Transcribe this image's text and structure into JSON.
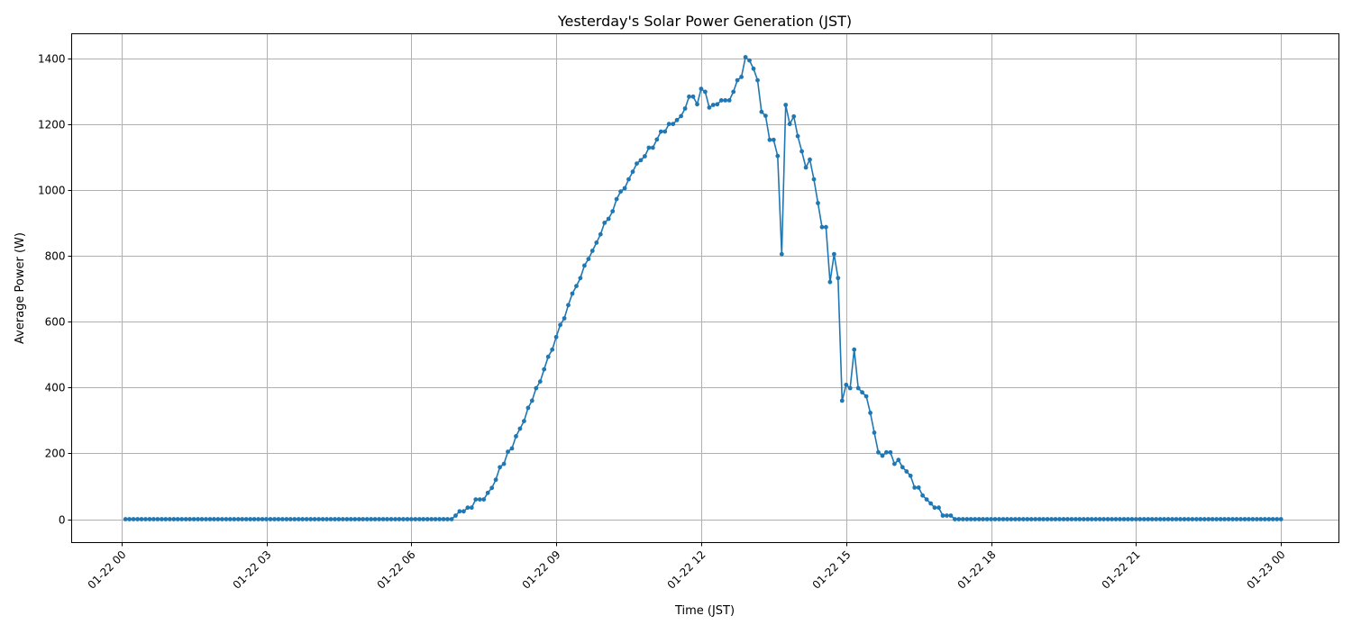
{
  "chart_data": {
    "type": "line",
    "title": "Yesterday's Solar Power Generation (JST)",
    "xlabel": "Time (JST)",
    "ylabel": "Average Power (W)",
    "date": "01-22",
    "xlim_hours": [
      -1.03,
      25.2
    ],
    "ylim": [
      -71,
      1474
    ],
    "grid": true,
    "marker": "circle",
    "line_color": "#1f77b4",
    "x_ticks": [
      {
        "hour": 0,
        "label": "01-22 00"
      },
      {
        "hour": 3,
        "label": "01-22 03"
      },
      {
        "hour": 6,
        "label": "01-22 06"
      },
      {
        "hour": 9,
        "label": "01-22 09"
      },
      {
        "hour": 12,
        "label": "01-22 12"
      },
      {
        "hour": 15,
        "label": "01-22 15"
      },
      {
        "hour": 18,
        "label": "01-22 18"
      },
      {
        "hour": 21,
        "label": "01-22 21"
      },
      {
        "hour": 24,
        "label": "01-23 00"
      }
    ],
    "y_ticks": [
      0,
      200,
      400,
      600,
      800,
      1000,
      1200,
      1400
    ],
    "x": [
      "00:05",
      "00:10",
      "00:15",
      "00:20",
      "00:25",
      "00:30",
      "00:35",
      "00:40",
      "00:45",
      "00:50",
      "00:55",
      "01:00",
      "01:05",
      "01:10",
      "01:15",
      "01:20",
      "01:25",
      "01:30",
      "01:35",
      "01:40",
      "01:45",
      "01:50",
      "01:55",
      "02:00",
      "02:05",
      "02:10",
      "02:15",
      "02:20",
      "02:25",
      "02:30",
      "02:35",
      "02:40",
      "02:45",
      "02:50",
      "02:55",
      "03:00",
      "03:05",
      "03:10",
      "03:15",
      "03:20",
      "03:25",
      "03:30",
      "03:35",
      "03:40",
      "03:45",
      "03:50",
      "03:55",
      "04:00",
      "04:05",
      "04:10",
      "04:15",
      "04:20",
      "04:25",
      "04:30",
      "04:35",
      "04:40",
      "04:45",
      "04:50",
      "04:55",
      "05:00",
      "05:05",
      "05:10",
      "05:15",
      "05:20",
      "05:25",
      "05:30",
      "05:35",
      "05:40",
      "05:45",
      "05:50",
      "05:55",
      "06:00",
      "06:05",
      "06:10",
      "06:15",
      "06:20",
      "06:25",
      "06:30",
      "06:35",
      "06:40",
      "06:45",
      "06:50",
      "06:55",
      "07:00",
      "07:05",
      "07:10",
      "07:15",
      "07:20",
      "07:25",
      "07:30",
      "07:35",
      "07:40",
      "07:45",
      "07:50",
      "07:55",
      "08:00",
      "08:05",
      "08:10",
      "08:15",
      "08:20",
      "08:25",
      "08:30",
      "08:35",
      "08:40",
      "08:45",
      "08:50",
      "08:55",
      "09:00",
      "09:05",
      "09:10",
      "09:15",
      "09:20",
      "09:25",
      "09:30",
      "09:35",
      "09:40",
      "09:45",
      "09:50",
      "09:55",
      "10:00",
      "10:05",
      "10:10",
      "10:15",
      "10:20",
      "10:25",
      "10:30",
      "10:35",
      "10:40",
      "10:45",
      "10:50",
      "10:55",
      "11:00",
      "11:05",
      "11:10",
      "11:15",
      "11:20",
      "11:25",
      "11:30",
      "11:35",
      "11:40",
      "11:45",
      "11:50",
      "11:55",
      "12:00",
      "12:05",
      "12:10",
      "12:15",
      "12:20",
      "12:25",
      "12:30",
      "12:35",
      "12:40",
      "12:45",
      "12:50",
      "12:55",
      "13:00",
      "13:05",
      "13:10",
      "13:15",
      "13:20",
      "13:25",
      "13:30",
      "13:35",
      "13:40",
      "13:45",
      "13:50",
      "13:55",
      "14:00",
      "14:05",
      "14:10",
      "14:15",
      "14:20",
      "14:25",
      "14:30",
      "14:35",
      "14:40",
      "14:45",
      "14:50",
      "14:55",
      "15:00",
      "15:05",
      "15:10",
      "15:15",
      "15:20",
      "15:25",
      "15:30",
      "15:35",
      "15:40",
      "15:45",
      "15:50",
      "15:55",
      "16:00",
      "16:05",
      "16:10",
      "16:15",
      "16:20",
      "16:25",
      "16:30",
      "16:35",
      "16:40",
      "16:45",
      "16:50",
      "16:55",
      "17:00",
      "17:05",
      "17:10",
      "17:15",
      "17:20",
      "17:25",
      "17:30",
      "17:35",
      "17:40",
      "17:45",
      "17:50",
      "17:55",
      "18:00",
      "18:05",
      "18:10",
      "18:15",
      "18:20",
      "18:25",
      "18:30",
      "18:35",
      "18:40",
      "18:45",
      "18:50",
      "18:55",
      "19:00",
      "19:05",
      "19:10",
      "19:15",
      "19:20",
      "19:25",
      "19:30",
      "19:35",
      "19:40",
      "19:45",
      "19:50",
      "19:55",
      "20:00",
      "20:05",
      "20:10",
      "20:15",
      "20:20",
      "20:25",
      "20:30",
      "20:35",
      "20:40",
      "20:45",
      "20:50",
      "20:55",
      "21:00",
      "21:05",
      "21:10",
      "21:15",
      "21:20",
      "21:25",
      "21:30",
      "21:35",
      "21:40",
      "21:45",
      "21:50",
      "21:55",
      "22:00",
      "22:05",
      "22:10",
      "22:15",
      "22:20",
      "22:25",
      "22:30",
      "22:35",
      "22:40",
      "22:45",
      "22:50",
      "22:55",
      "23:00",
      "23:05",
      "23:10",
      "23:15",
      "23:20",
      "23:25",
      "23:30",
      "23:35",
      "23:40",
      "23:45",
      "23:50",
      "23:55",
      "24:00"
    ],
    "values": [
      0,
      0,
      0,
      0,
      0,
      0,
      0,
      0,
      0,
      0,
      0,
      0,
      0,
      0,
      0,
      0,
      0,
      0,
      0,
      0,
      0,
      0,
      0,
      0,
      0,
      0,
      0,
      0,
      0,
      0,
      0,
      0,
      0,
      0,
      0,
      0,
      0,
      0,
      0,
      0,
      0,
      0,
      0,
      0,
      0,
      0,
      0,
      0,
      0,
      0,
      0,
      0,
      0,
      0,
      0,
      0,
      0,
      0,
      0,
      0,
      0,
      0,
      0,
      0,
      0,
      0,
      0,
      0,
      0,
      0,
      0,
      0,
      0,
      0,
      0,
      0,
      0,
      0,
      0,
      0,
      0,
      0,
      11,
      24,
      24,
      35,
      35,
      60,
      60,
      60,
      80,
      95,
      120,
      158,
      168,
      205,
      215,
      252,
      275,
      298,
      338,
      360,
      398,
      418,
      455,
      493,
      515,
      553,
      590,
      610,
      650,
      685,
      708,
      732,
      770,
      790,
      815,
      840,
      865,
      900,
      912,
      935,
      972,
      995,
      1005,
      1032,
      1055,
      1080,
      1090,
      1102,
      1128,
      1128,
      1153,
      1177,
      1177,
      1200,
      1200,
      1212,
      1224,
      1247,
      1283,
      1283,
      1260,
      1307,
      1298,
      1250,
      1258,
      1260,
      1272,
      1272,
      1272,
      1298,
      1333,
      1343,
      1403,
      1393,
      1368,
      1333,
      1237,
      1225,
      1152,
      1152,
      1103,
      805,
      1258,
      1200,
      1223,
      1163,
      1117,
      1068,
      1092,
      1032,
      960,
      887,
      887,
      720,
      805,
      732,
      360,
      408,
      398,
      515,
      398,
      385,
      373,
      323,
      263,
      203,
      193,
      203,
      203,
      168,
      180,
      158,
      145,
      132,
      96,
      96,
      72,
      60,
      48,
      35,
      35,
      11,
      11,
      11,
      0,
      0,
      0,
      0,
      0,
      0,
      0,
      0,
      0,
      0,
      0,
      0,
      0,
      0,
      0,
      0,
      0,
      0,
      0,
      0,
      0,
      0,
      0,
      0,
      0,
      0,
      0,
      0,
      0,
      0,
      0,
      0,
      0,
      0,
      0,
      0,
      0,
      0,
      0,
      0,
      0,
      0,
      0,
      0,
      0,
      0,
      0,
      0,
      0,
      0,
      0,
      0,
      0,
      0,
      0,
      0,
      0,
      0,
      0,
      0,
      0,
      0,
      0,
      0,
      0,
      0,
      0,
      0,
      0,
      0,
      0,
      0,
      0,
      0,
      0,
      0,
      0,
      0,
      0,
      0,
      0,
      0
    ]
  }
}
